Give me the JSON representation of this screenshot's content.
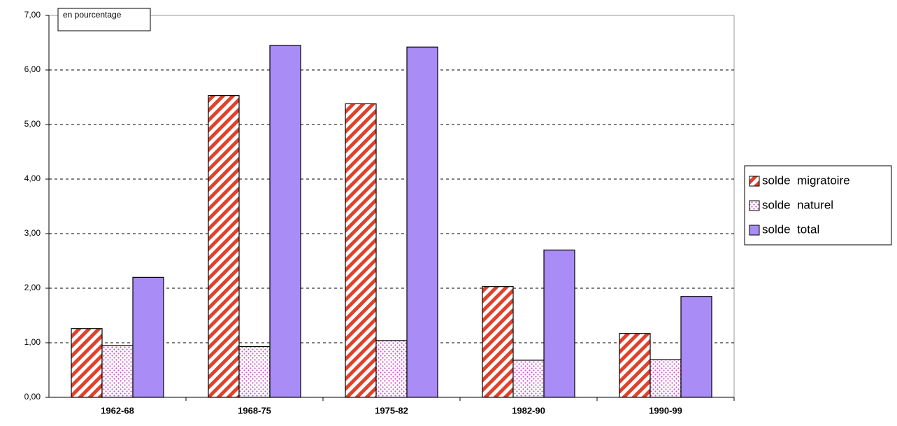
{
  "chart_data": {
    "type": "bar",
    "annotation": "en pourcentage",
    "categories": [
      "1962-68",
      "1968-75",
      "1975-82",
      "1982-90",
      "1990-99"
    ],
    "series": [
      {
        "name": "solde  migratoire",
        "color": "#e0412b",
        "pattern": "stripes",
        "values": [
          1.26,
          5.53,
          5.38,
          2.03,
          1.17
        ]
      },
      {
        "name": "solde  naturel",
        "color": "#cc55cc",
        "pattern": "dots",
        "values": [
          0.95,
          0.93,
          1.04,
          0.68,
          0.69
        ]
      },
      {
        "name": "solde  total",
        "color": "#a98cf5",
        "pattern": "solid",
        "values": [
          2.2,
          6.45,
          6.42,
          2.7,
          1.85
        ]
      }
    ],
    "ylim": [
      0,
      7
    ],
    "yticks": [
      {
        "value": 0,
        "label": "0,00"
      },
      {
        "value": 1,
        "label": "1,00"
      },
      {
        "value": 2,
        "label": "2,00"
      },
      {
        "value": 3,
        "label": "3,00"
      },
      {
        "value": 4,
        "label": "4,00"
      },
      {
        "value": 5,
        "label": "5,00"
      },
      {
        "value": 6,
        "label": "6,00"
      },
      {
        "value": 7,
        "label": "7,00"
      }
    ],
    "grid": true,
    "legend": "right"
  }
}
